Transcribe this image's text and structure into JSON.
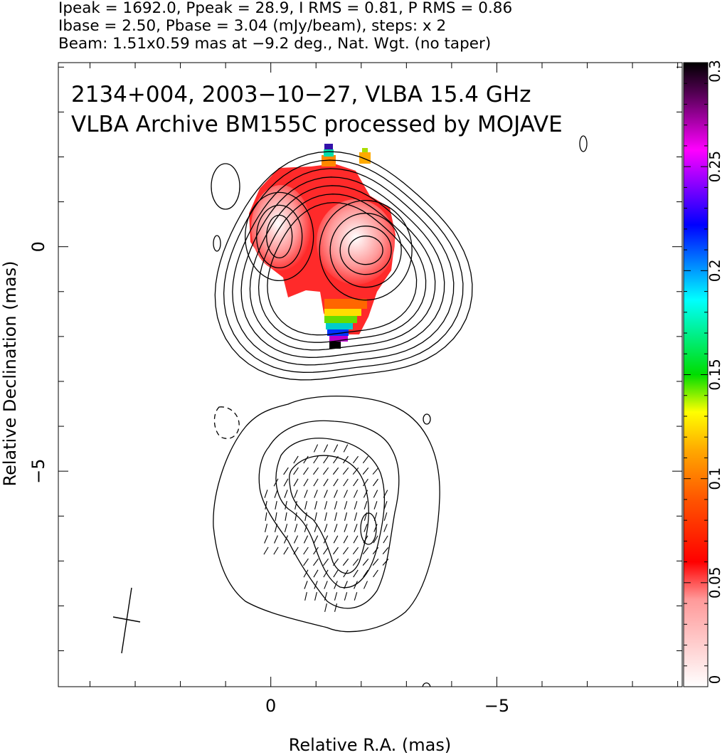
{
  "header": {
    "line1": "Ipeak = 1692.0, Ppeak = 28.9, I RMS = 0.81, P RMS = 0.86",
    "line2": "Ibase = 2.50, Pbase = 3.04 (mJy/beam), steps: x 2",
    "line3": "Beam: 1.51x0.59 mas at −9.2 deg., Nat. Wgt. (no taper)"
  },
  "chart_data": {
    "type": "heatmap",
    "title": "2134+004, 2003−10−27, VLBA 15.4 GHz",
    "subtitle": "VLBA Archive BM155C processed by MOJAVE",
    "xlabel": "Relative R.A. (mas)",
    "ylabel": "Relative Declination (mas)",
    "xlim": [
      4.7,
      -9.1
    ],
    "ylim": [
      -9.8,
      4.1
    ],
    "xticks": [
      0,
      -5
    ],
    "xtick_labels": [
      "0",
      "−5"
    ],
    "yticks": [
      0,
      -5
    ],
    "ytick_labels": [
      "0",
      "−5"
    ],
    "grid": false,
    "colorbar": {
      "min": 0,
      "max": 0.3,
      "ticks": [
        0,
        0.05,
        0.1,
        0.15,
        0.2,
        0.25,
        0.3
      ],
      "tick_labels": [
        "0",
        "0.05",
        "0.1",
        "0.15",
        "0.2",
        "0.25",
        "0.3"
      ],
      "stops": [
        "#ffffff",
        "#ff0000",
        "#ff9900",
        "#ffff00",
        "#00dd00",
        "#00ffff",
        "#0000ff",
        "#ff00ff",
        "#000000"
      ]
    },
    "upper_panel": {
      "components": [
        {
          "x": 0.0,
          "y": 0.1
        },
        {
          "x": -2.1,
          "y": 0.0
        }
      ]
    },
    "lower_panel": {
      "center": {
        "x": -1.7,
        "y": -6.2
      }
    },
    "beam": {
      "major_mas": 1.51,
      "minor_mas": 0.59,
      "pa_deg": -9.2
    }
  }
}
